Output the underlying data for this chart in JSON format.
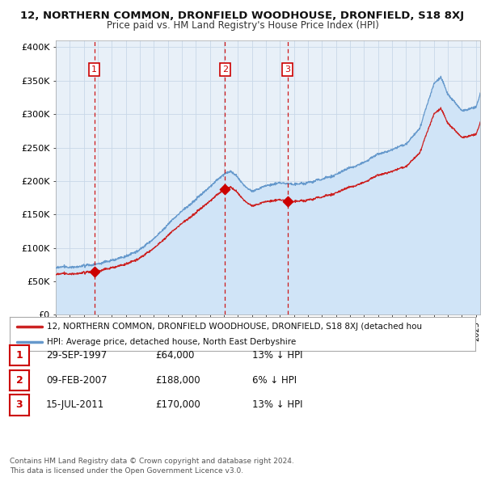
{
  "title": "12, NORTHERN COMMON, DRONFIELD WOODHOUSE, DRONFIELD, S18 8XJ",
  "subtitle": "Price paid vs. HM Land Registry's House Price Index (HPI)",
  "ylim": [
    0,
    410000
  ],
  "yticks": [
    0,
    50000,
    100000,
    150000,
    200000,
    250000,
    300000,
    350000,
    400000
  ],
  "ytick_labels": [
    "£0",
    "£50K",
    "£100K",
    "£150K",
    "£200K",
    "£250K",
    "£300K",
    "£350K",
    "£400K"
  ],
  "xlim_start": 1995.0,
  "xlim_end": 2025.3,
  "sales": [
    {
      "date_num": 1997.75,
      "price": 64000,
      "label": "1"
    },
    {
      "date_num": 2007.08,
      "price": 188000,
      "label": "2"
    },
    {
      "date_num": 2011.54,
      "price": 170000,
      "label": "3"
    }
  ],
  "sale_color": "#cc0000",
  "hpi_color": "#6699cc",
  "hpi_fill_color": "#d0e4f7",
  "chart_bg_color": "#e8f0f8",
  "property_line_color": "#cc2222",
  "legend_property": "12, NORTHERN COMMON, DRONFIELD WOODHOUSE, DRONFIELD, S18 8XJ (detached hou",
  "legend_hpi": "HPI: Average price, detached house, North East Derbyshire",
  "table_rows": [
    {
      "num": "1",
      "date": "29-SEP-1997",
      "price": "£64,000",
      "hpi": "13% ↓ HPI"
    },
    {
      "num": "2",
      "date": "09-FEB-2007",
      "price": "£188,000",
      "hpi": "6% ↓ HPI"
    },
    {
      "num": "3",
      "date": "15-JUL-2011",
      "price": "£170,000",
      "hpi": "13% ↓ HPI"
    }
  ],
  "footer": "Contains HM Land Registry data © Crown copyright and database right 2024.\nThis data is licensed under the Open Government Licence v3.0.",
  "background_color": "#ffffff",
  "grid_color": "#c8d8e8",
  "vline_color": "#cc0000"
}
